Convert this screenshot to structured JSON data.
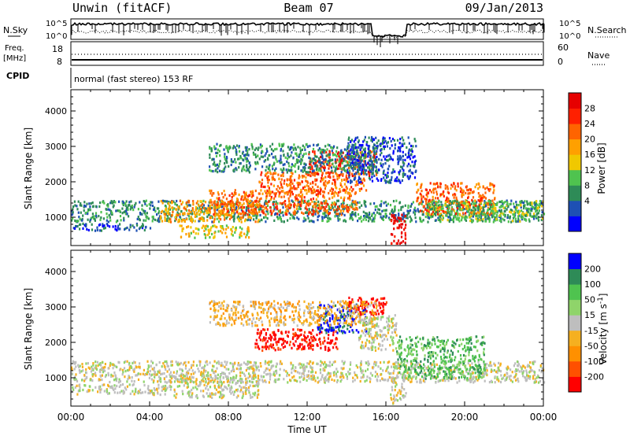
{
  "header": {
    "station": "Unwin (fitACF)",
    "beam": "Beam 07",
    "date": "09/Jan/2013"
  },
  "status_panels": {
    "nsky": {
      "label": "N.Sky",
      "right_label": "N.Search",
      "left_ticks": [
        "10^5",
        "10^0"
      ],
      "right_ticks": [
        "10^5",
        "10^0"
      ]
    },
    "freq": {
      "label_line1": "Freq.",
      "label_line2": "[MHz]",
      "right_label": "Nave",
      "left_ticks": [
        "18",
        "8"
      ],
      "right_ticks": [
        "60",
        "0"
      ]
    },
    "cpid": {
      "label": "CPID",
      "mode_text": "normal (fast stereo) 153 RF"
    }
  },
  "chart_data": [
    {
      "type": "heatmap",
      "name": "power",
      "ylabel": "Slant Range [km]",
      "ylim": [
        200,
        4600
      ],
      "yticks": [
        1000,
        2000,
        3000,
        4000
      ],
      "xlim_hours": [
        0,
        24
      ],
      "colorbar": {
        "label": "Power [dB]",
        "ticks": [
          "28",
          "24",
          "20",
          "16",
          "12",
          "8",
          "4"
        ],
        "colors": [
          "#0000ff",
          "#1e50b4",
          "#2e8b57",
          "#4fc34f",
          "#f0c800",
          "#ffa000",
          "#ff6400",
          "#ff2000",
          "#e60000"
        ]
      },
      "regions": [
        {
          "t0": 0.0,
          "t1": 24.0,
          "r0": 900,
          "r1": 1500,
          "level": 2
        },
        {
          "t0": 0.0,
          "t1": 4.0,
          "r0": 650,
          "r1": 850,
          "level": 1
        },
        {
          "t0": 4.5,
          "t1": 9.5,
          "r0": 900,
          "r1": 1500,
          "level": 5
        },
        {
          "t0": 5.5,
          "t1": 9.0,
          "r0": 450,
          "r1": 800,
          "level": 4
        },
        {
          "t0": 7.0,
          "t1": 14.5,
          "r0": 1100,
          "r1": 1800,
          "level": 6
        },
        {
          "t0": 9.5,
          "t1": 15.0,
          "r0": 1700,
          "r1": 2300,
          "level": 6
        },
        {
          "t0": 12.0,
          "t1": 15.5,
          "r0": 2200,
          "r1": 2900,
          "level": 7
        },
        {
          "t0": 7.0,
          "t1": 15.5,
          "r0": 2300,
          "r1": 3100,
          "level": 2
        },
        {
          "t0": 16.2,
          "t1": 17.0,
          "r0": 250,
          "r1": 1100,
          "level": 8
        },
        {
          "t0": 17.5,
          "t1": 21.5,
          "r0": 1100,
          "r1": 2000,
          "level": 6
        },
        {
          "t0": 18.0,
          "t1": 24.0,
          "r0": 900,
          "r1": 1500,
          "level": 3
        },
        {
          "t0": 14.0,
          "t1": 17.5,
          "r0": 2000,
          "r1": 3300,
          "level": 1
        }
      ]
    },
    {
      "type": "heatmap",
      "name": "velocity",
      "ylabel": "Slant Range [km]",
      "ylim": [
        200,
        4600
      ],
      "yticks": [
        1000,
        2000,
        3000,
        4000
      ],
      "xlim_hours": [
        0,
        24
      ],
      "xlabel": "Time UT",
      "xticks": [
        "00:00",
        "04:00",
        "08:00",
        "12:00",
        "16:00",
        "20:00",
        "00:00"
      ],
      "colorbar": {
        "label": "Velocity [m s",
        "label_superscript": "-1",
        "label_close": "]",
        "ticks": [
          "200",
          "100",
          "50",
          "15",
          "-15",
          "-50",
          "-100",
          "-200"
        ],
        "colors": [
          "#ff0000",
          "#ff5000",
          "#ff9000",
          "#f5b020",
          "#bebebe",
          "#8fd46a",
          "#4fc34f",
          "#2e8b57",
          "#0000ff"
        ]
      },
      "regions": [
        {
          "t0": 0.0,
          "t1": 24.0,
          "r0": 900,
          "r1": 1500,
          "level": 4
        },
        {
          "t0": 0.0,
          "t1": 5.0,
          "r0": 550,
          "r1": 850,
          "level": 4
        },
        {
          "t0": 5.0,
          "t1": 9.5,
          "r0": 450,
          "r1": 1100,
          "level": 4
        },
        {
          "t0": 9.3,
          "t1": 13.5,
          "r0": 1800,
          "r1": 2400,
          "level": 0
        },
        {
          "t0": 12.5,
          "t1": 15.0,
          "r0": 2300,
          "r1": 3100,
          "level": 8
        },
        {
          "t0": 14.0,
          "t1": 16.0,
          "r0": 2800,
          "r1": 3300,
          "level": 0
        },
        {
          "t0": 16.5,
          "t1": 21.0,
          "r0": 1000,
          "r1": 2200,
          "level": 6
        },
        {
          "t0": 16.2,
          "t1": 17.0,
          "r0": 300,
          "r1": 1100,
          "level": 4
        },
        {
          "t0": 7.0,
          "t1": 15.5,
          "r0": 2500,
          "r1": 3200,
          "level": 3
        },
        {
          "t0": 14.5,
          "t1": 16.5,
          "r0": 1800,
          "r1": 2800,
          "level": 4
        }
      ]
    }
  ]
}
